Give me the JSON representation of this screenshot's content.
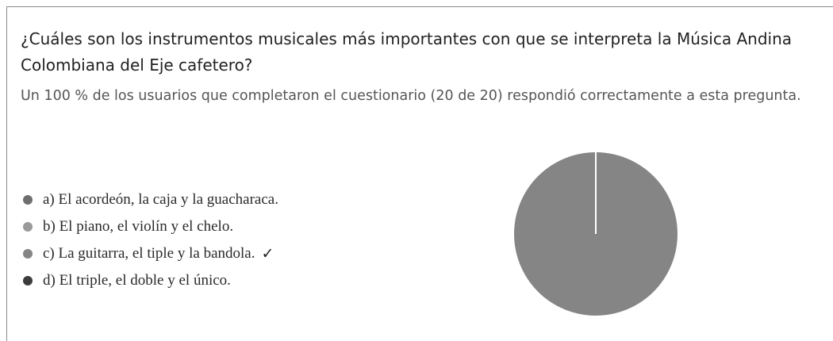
{
  "question": {
    "text": "¿Cuáles son los instrumentos musicales más importantes con que se interpreta la Música Andina Colombiana del Eje cafetero?"
  },
  "summary": {
    "text": "Un 100 % de los usuarios que completaron el cuestionario (20 de 20) respondió correctamente a esta pregunta."
  },
  "legend": {
    "items": [
      {
        "label": "a) El acordeón, la caja y la guacharaca.",
        "color": "#6e6e6e",
        "correct": false,
        "check": ""
      },
      {
        "label": "b) El piano, el violín y el chelo.",
        "color": "#9a9a9a",
        "correct": false,
        "check": ""
      },
      {
        "label": "c) La guitarra, el tiple y la bandola.",
        "color": "#858585",
        "correct": true,
        "check": "✓"
      },
      {
        "label": "d) El triple, el doble y el único.",
        "color": "#3c3c3c",
        "correct": false,
        "check": ""
      }
    ]
  },
  "chart_data": {
    "type": "pie",
    "categories": [
      "a) El acordeón, la caja y la guacharaca.",
      "b) El piano, el violín y el chelo.",
      "c) La guitarra, el tiple y la bandola.",
      "d) El triple, el doble y el único."
    ],
    "values": [
      0,
      0,
      20,
      0
    ],
    "colors": [
      "#6e6e6e",
      "#9a9a9a",
      "#858585",
      "#3c3c3c"
    ],
    "slice_border_color": "#ffffff",
    "legend_position": "left"
  }
}
